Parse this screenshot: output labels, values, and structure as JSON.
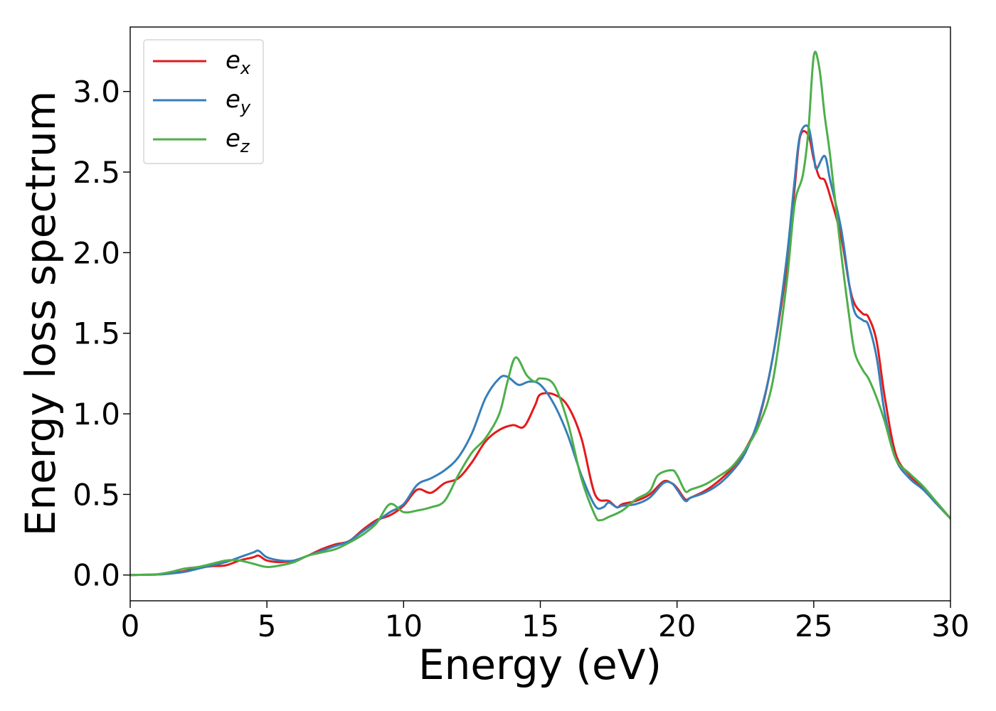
{
  "chart_data": {
    "type": "line",
    "title": "",
    "xlabel": "Energy (eV)",
    "ylabel": "Energy loss spectrum",
    "xlim": [
      0,
      30
    ],
    "ylim": [
      -0.16,
      3.4
    ],
    "xticks": [
      0,
      5,
      10,
      15,
      20,
      25,
      30
    ],
    "xtick_labels": [
      "0",
      "5",
      "10",
      "15",
      "20",
      "25",
      "30"
    ],
    "yticks": [
      0.0,
      0.5,
      1.0,
      1.5,
      2.0,
      2.5,
      3.0
    ],
    "ytick_labels": [
      "0.0",
      "0.5",
      "1.0",
      "1.5",
      "2.0",
      "2.5",
      "3.0"
    ],
    "grid": false,
    "legend_position": "top-left",
    "series": [
      {
        "name": "e_x",
        "label_main": "e",
        "label_sub": "x",
        "color": "#e41a1c",
        "points": [
          [
            0,
            0
          ],
          [
            1,
            0.003
          ],
          [
            1.5,
            0.01
          ],
          [
            2,
            0.025
          ],
          [
            2.5,
            0.045
          ],
          [
            3,
            0.055
          ],
          [
            3.5,
            0.06
          ],
          [
            4,
            0.09
          ],
          [
            4.5,
            0.11
          ],
          [
            4.7,
            0.12
          ],
          [
            5,
            0.09
          ],
          [
            5.5,
            0.08
          ],
          [
            6,
            0.09
          ],
          [
            6.5,
            0.12
          ],
          [
            7,
            0.16
          ],
          [
            7.5,
            0.19
          ],
          [
            8,
            0.21
          ],
          [
            8.5,
            0.28
          ],
          [
            9,
            0.34
          ],
          [
            9.5,
            0.37
          ],
          [
            10,
            0.43
          ],
          [
            10.5,
            0.53
          ],
          [
            11,
            0.51
          ],
          [
            11.5,
            0.57
          ],
          [
            12,
            0.6
          ],
          [
            12.5,
            0.7
          ],
          [
            13,
            0.83
          ],
          [
            13.5,
            0.9
          ],
          [
            14,
            0.93
          ],
          [
            14.4,
            0.92
          ],
          [
            14.8,
            1.05
          ],
          [
            15,
            1.12
          ],
          [
            15.5,
            1.12
          ],
          [
            16,
            1.05
          ],
          [
            16.5,
            0.85
          ],
          [
            17,
            0.5
          ],
          [
            17.5,
            0.46
          ],
          [
            17.8,
            0.42
          ],
          [
            18,
            0.44
          ],
          [
            18.5,
            0.46
          ],
          [
            19,
            0.5
          ],
          [
            19.5,
            0.58
          ],
          [
            19.8,
            0.57
          ],
          [
            20,
            0.54
          ],
          [
            20.3,
            0.47
          ],
          [
            20.5,
            0.48
          ],
          [
            21,
            0.52
          ],
          [
            21.5,
            0.58
          ],
          [
            22,
            0.66
          ],
          [
            22.5,
            0.78
          ],
          [
            23,
            0.97
          ],
          [
            23.5,
            1.35
          ],
          [
            24,
            1.9
          ],
          [
            24.3,
            2.4
          ],
          [
            24.5,
            2.72
          ],
          [
            24.8,
            2.73
          ],
          [
            25,
            2.58
          ],
          [
            25.2,
            2.47
          ],
          [
            25.4,
            2.45
          ],
          [
            25.6,
            2.35
          ],
          [
            26,
            2.1
          ],
          [
            26.3,
            1.8
          ],
          [
            26.5,
            1.68
          ],
          [
            26.8,
            1.62
          ],
          [
            27,
            1.6
          ],
          [
            27.3,
            1.45
          ],
          [
            27.6,
            1.1
          ],
          [
            28,
            0.75
          ],
          [
            28.5,
            0.62
          ],
          [
            29,
            0.54
          ],
          [
            29.5,
            0.45
          ],
          [
            30,
            0.35
          ]
        ]
      },
      {
        "name": "e_y",
        "label_main": "e",
        "label_sub": "y",
        "color": "#377eb8",
        "points": [
          [
            0,
            0
          ],
          [
            1,
            0.003
          ],
          [
            1.5,
            0.01
          ],
          [
            2,
            0.02
          ],
          [
            2.5,
            0.04
          ],
          [
            3,
            0.06
          ],
          [
            3.5,
            0.08
          ],
          [
            4,
            0.11
          ],
          [
            4.5,
            0.14
          ],
          [
            4.7,
            0.15
          ],
          [
            5,
            0.11
          ],
          [
            5.5,
            0.09
          ],
          [
            6,
            0.09
          ],
          [
            6.5,
            0.12
          ],
          [
            7,
            0.15
          ],
          [
            7.5,
            0.18
          ],
          [
            8,
            0.21
          ],
          [
            8.5,
            0.27
          ],
          [
            9,
            0.33
          ],
          [
            9.5,
            0.39
          ],
          [
            10,
            0.44
          ],
          [
            10.5,
            0.56
          ],
          [
            11,
            0.6
          ],
          [
            11.5,
            0.65
          ],
          [
            12,
            0.73
          ],
          [
            12.5,
            0.88
          ],
          [
            13,
            1.1
          ],
          [
            13.5,
            1.22
          ],
          [
            13.8,
            1.23
          ],
          [
            14.2,
            1.18
          ],
          [
            14.6,
            1.2
          ],
          [
            15,
            1.18
          ],
          [
            15.5,
            1.06
          ],
          [
            16,
            0.87
          ],
          [
            16.5,
            0.62
          ],
          [
            17,
            0.43
          ],
          [
            17.3,
            0.42
          ],
          [
            17.5,
            0.45
          ],
          [
            17.8,
            0.42
          ],
          [
            18,
            0.43
          ],
          [
            18.5,
            0.44
          ],
          [
            19,
            0.48
          ],
          [
            19.5,
            0.57
          ],
          [
            19.8,
            0.57
          ],
          [
            20,
            0.53
          ],
          [
            20.3,
            0.46
          ],
          [
            20.5,
            0.48
          ],
          [
            21,
            0.51
          ],
          [
            21.5,
            0.56
          ],
          [
            22,
            0.64
          ],
          [
            22.5,
            0.76
          ],
          [
            23,
            0.98
          ],
          [
            23.5,
            1.35
          ],
          [
            24,
            1.95
          ],
          [
            24.3,
            2.45
          ],
          [
            24.5,
            2.73
          ],
          [
            24.8,
            2.78
          ],
          [
            25,
            2.6
          ],
          [
            25.1,
            2.52
          ],
          [
            25.4,
            2.6
          ],
          [
            25.6,
            2.45
          ],
          [
            26,
            2.15
          ],
          [
            26.3,
            1.8
          ],
          [
            26.5,
            1.63
          ],
          [
            26.8,
            1.58
          ],
          [
            27,
            1.55
          ],
          [
            27.3,
            1.35
          ],
          [
            27.6,
            1.0
          ],
          [
            28,
            0.72
          ],
          [
            28.5,
            0.6
          ],
          [
            29,
            0.53
          ],
          [
            29.5,
            0.44
          ],
          [
            30,
            0.35
          ]
        ]
      },
      {
        "name": "e_z",
        "label_main": "e",
        "label_sub": "z",
        "color": "#4daf4a",
        "points": [
          [
            0,
            0
          ],
          [
            1,
            0.005
          ],
          [
            1.5,
            0.02
          ],
          [
            2,
            0.04
          ],
          [
            2.5,
            0.05
          ],
          [
            3,
            0.07
          ],
          [
            3.5,
            0.09
          ],
          [
            4,
            0.09
          ],
          [
            4.5,
            0.07
          ],
          [
            5,
            0.05
          ],
          [
            5.5,
            0.06
          ],
          [
            6,
            0.08
          ],
          [
            6.5,
            0.12
          ],
          [
            7,
            0.14
          ],
          [
            7.5,
            0.16
          ],
          [
            8,
            0.2
          ],
          [
            8.5,
            0.25
          ],
          [
            9,
            0.32
          ],
          [
            9.5,
            0.44
          ],
          [
            10,
            0.39
          ],
          [
            10.5,
            0.4
          ],
          [
            11,
            0.42
          ],
          [
            11.5,
            0.46
          ],
          [
            12,
            0.62
          ],
          [
            12.5,
            0.76
          ],
          [
            13,
            0.85
          ],
          [
            13.5,
            1.0
          ],
          [
            13.8,
            1.2
          ],
          [
            14.1,
            1.35
          ],
          [
            14.5,
            1.24
          ],
          [
            14.8,
            1.2
          ],
          [
            15,
            1.22
          ],
          [
            15.5,
            1.18
          ],
          [
            16,
            0.95
          ],
          [
            16.5,
            0.6
          ],
          [
            17,
            0.37
          ],
          [
            17.2,
            0.34
          ],
          [
            17.5,
            0.36
          ],
          [
            18,
            0.4
          ],
          [
            18.5,
            0.47
          ],
          [
            19,
            0.52
          ],
          [
            19.3,
            0.62
          ],
          [
            19.8,
            0.65
          ],
          [
            20,
            0.62
          ],
          [
            20.3,
            0.52
          ],
          [
            20.5,
            0.53
          ],
          [
            21,
            0.56
          ],
          [
            21.5,
            0.61
          ],
          [
            22,
            0.67
          ],
          [
            22.5,
            0.78
          ],
          [
            23,
            0.93
          ],
          [
            23.5,
            1.2
          ],
          [
            24,
            1.8
          ],
          [
            24.3,
            2.3
          ],
          [
            24.6,
            2.48
          ],
          [
            24.8,
            2.75
          ],
          [
            25,
            3.22
          ],
          [
            25.2,
            3.15
          ],
          [
            25.4,
            2.85
          ],
          [
            25.6,
            2.6
          ],
          [
            26,
            2.0
          ],
          [
            26.3,
            1.6
          ],
          [
            26.5,
            1.38
          ],
          [
            26.8,
            1.27
          ],
          [
            27,
            1.22
          ],
          [
            27.3,
            1.1
          ],
          [
            27.6,
            0.95
          ],
          [
            28,
            0.72
          ],
          [
            28.5,
            0.63
          ],
          [
            29,
            0.55
          ],
          [
            29.5,
            0.45
          ],
          [
            30,
            0.35
          ]
        ]
      }
    ]
  }
}
